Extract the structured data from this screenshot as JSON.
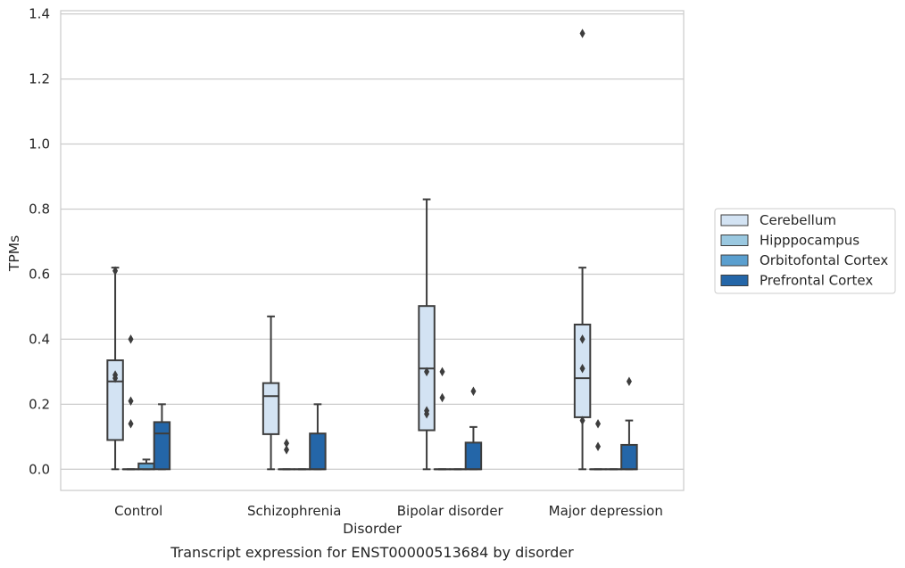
{
  "chart_data": {
    "type": "box",
    "xlabel": "Disorder",
    "ylabel": "TPMs",
    "caption": "Transcript expression for ENST00000513684 by disorder",
    "ylim": [
      -0.065,
      1.41
    ],
    "yticks": [
      "0.0",
      "0.2",
      "0.4",
      "0.6",
      "0.8",
      "1.0",
      "1.2",
      "1.4"
    ],
    "ytick_values": [
      0,
      0.2,
      0.4,
      0.6,
      0.8,
      1.0,
      1.2,
      1.4
    ],
    "grid": "horizontal",
    "legend_position": "right",
    "categories": [
      "Control",
      "Schizophrenia",
      "Bipolar disorder",
      "Major depression"
    ],
    "series": [
      {
        "name": "Cerebellum",
        "color": "#d3e3f3",
        "boxes": [
          {
            "whislo": 0.0,
            "q1": 0.09,
            "med": 0.27,
            "q3": 0.335,
            "whishi": 0.62,
            "fliers": [
              0.61,
              0.29,
              0.28
            ]
          },
          {
            "whislo": 0.0,
            "q1": 0.108,
            "med": 0.225,
            "q3": 0.265,
            "whishi": 0.47,
            "fliers": []
          },
          {
            "whislo": 0.0,
            "q1": 0.12,
            "med": 0.31,
            "q3": 0.502,
            "whishi": 0.83,
            "fliers": [
              0.3,
              0.18,
              0.17
            ]
          },
          {
            "whislo": 0.0,
            "q1": 0.16,
            "med": 0.28,
            "q3": 0.445,
            "whishi": 0.62,
            "fliers": [
              1.34,
              0.4,
              0.31,
              0.15
            ]
          }
        ]
      },
      {
        "name": "Hipppocampus",
        "color": "#9ac8e0",
        "boxes": [
          {
            "whislo": 0.0,
            "q1": 0.0,
            "med": 0.0,
            "q3": 0.0,
            "whishi": 0.0,
            "fliers": [
              0.4,
              0.21,
              0.14
            ]
          },
          {
            "whislo": 0.0,
            "q1": 0.0,
            "med": 0.0,
            "q3": 0.0,
            "whishi": 0.0,
            "fliers": [
              0.08,
              0.06
            ]
          },
          {
            "whislo": 0.0,
            "q1": 0.0,
            "med": 0.0,
            "q3": 0.0,
            "whishi": 0.0,
            "fliers": [
              0.3,
              0.22
            ]
          },
          {
            "whislo": 0.0,
            "q1": 0.0,
            "med": 0.0,
            "q3": 0.0,
            "whishi": 0.0,
            "fliers": [
              0.14,
              0.07
            ]
          }
        ]
      },
      {
        "name": "Orbitofontal Cortex",
        "color": "#5a9fcf",
        "boxes": [
          {
            "whislo": 0.0,
            "q1": 0.0,
            "med": 0.0,
            "q3": 0.018,
            "whishi": 0.03,
            "fliers": []
          },
          {
            "whislo": 0.0,
            "q1": 0.0,
            "med": 0.0,
            "q3": 0.0,
            "whishi": 0.0,
            "fliers": []
          },
          {
            "whislo": 0.0,
            "q1": 0.0,
            "med": 0.0,
            "q3": 0.0,
            "whishi": 0.0,
            "fliers": []
          },
          {
            "whislo": 0.0,
            "q1": 0.0,
            "med": 0.0,
            "q3": 0.0,
            "whishi": 0.0,
            "fliers": []
          }
        ]
      },
      {
        "name": "Prefrontal Cortex",
        "color": "#2466a8",
        "boxes": [
          {
            "whislo": 0.0,
            "q1": 0.0,
            "med": 0.11,
            "q3": 0.145,
            "whishi": 0.2,
            "fliers": []
          },
          {
            "whislo": 0.0,
            "q1": 0.0,
            "med": 0.0,
            "q3": 0.11,
            "whishi": 0.2,
            "fliers": []
          },
          {
            "whislo": 0.0,
            "q1": 0.0,
            "med": 0.0,
            "q3": 0.082,
            "whishi": 0.13,
            "fliers": [
              0.24
            ]
          },
          {
            "whislo": 0.0,
            "q1": 0.0,
            "med": 0.0,
            "q3": 0.075,
            "whishi": 0.15,
            "fliers": [
              0.27
            ]
          }
        ]
      }
    ]
  }
}
